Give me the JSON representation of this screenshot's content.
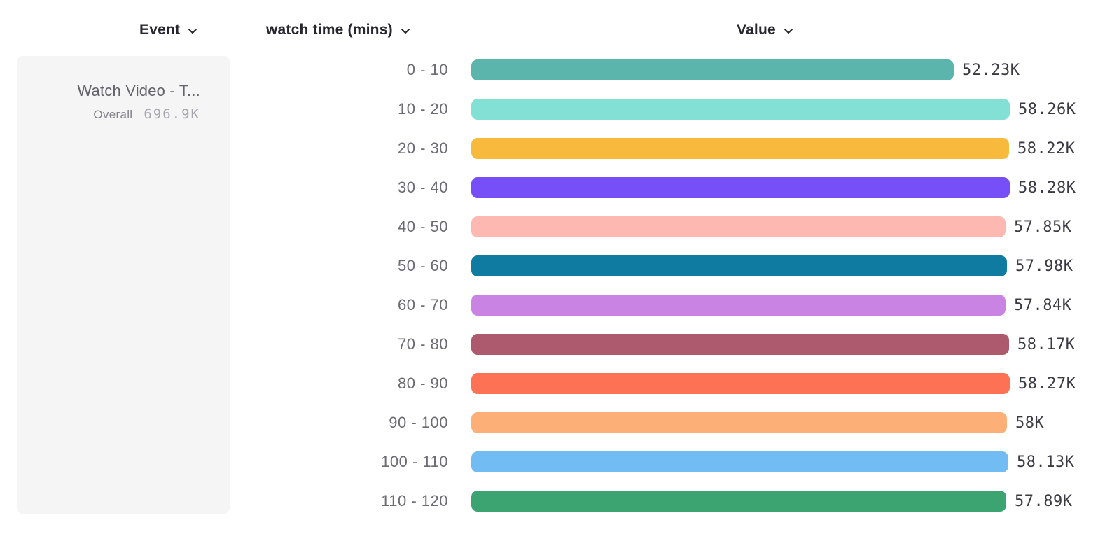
{
  "header": {
    "event_label": "Event",
    "breakdown_label": "watch time (mins)",
    "value_label": "Value"
  },
  "event_card": {
    "title": "Watch Video - T...",
    "overall_label": "Overall",
    "overall_value": "696.9K"
  },
  "chart_data": {
    "type": "bar",
    "orientation": "horizontal",
    "title": "",
    "xlabel": "Value",
    "ylabel": "watch time (mins)",
    "legend": false,
    "grid": false,
    "categories": [
      "0 - 10",
      "10 - 20",
      "20 - 30",
      "30 - 40",
      "40 - 50",
      "50 - 60",
      "60 - 70",
      "70 - 80",
      "80 - 90",
      "90 - 100",
      "100 - 110",
      "110 - 120"
    ],
    "values": [
      52230,
      58260,
      58220,
      58280,
      57850,
      57980,
      57840,
      58170,
      58270,
      58000,
      58130,
      57890
    ],
    "value_labels": [
      "52.23K",
      "58.26K",
      "58.22K",
      "58.28K",
      "57.85K",
      "57.98K",
      "57.84K",
      "58.17K",
      "58.27K",
      "58K",
      "58.13K",
      "57.89K"
    ],
    "max_value": 58280,
    "rows": [
      {
        "label": "0 - 10",
        "value": 52230,
        "display": "52.23K",
        "color": "#5bb5ac"
      },
      {
        "label": "10 - 20",
        "value": 58260,
        "display": "58.26K",
        "color": "#82e0d4"
      },
      {
        "label": "20 - 30",
        "value": 58220,
        "display": "58.22K",
        "color": "#f7ba3c"
      },
      {
        "label": "30 - 40",
        "value": 58280,
        "display": "58.28K",
        "color": "#764ff8"
      },
      {
        "label": "40 - 50",
        "value": 57850,
        "display": "57.85K",
        "color": "#fdb9b1"
      },
      {
        "label": "50 - 60",
        "value": 57980,
        "display": "57.98K",
        "color": "#107ba1"
      },
      {
        "label": "60 - 70",
        "value": 57840,
        "display": "57.84K",
        "color": "#c983e3"
      },
      {
        "label": "70 - 80",
        "value": 58170,
        "display": "58.17K",
        "color": "#ad5a6f"
      },
      {
        "label": "80 - 90",
        "value": 58270,
        "display": "58.27K",
        "color": "#fd7254"
      },
      {
        "label": "90 - 100",
        "value": 58000,
        "display": "58K",
        "color": "#fcb077"
      },
      {
        "label": "100 - 110",
        "value": 58130,
        "display": "58.13K",
        "color": "#72bcf4"
      },
      {
        "label": "110 - 120",
        "value": 57890,
        "display": "57.89K",
        "color": "#3ba471"
      }
    ]
  }
}
